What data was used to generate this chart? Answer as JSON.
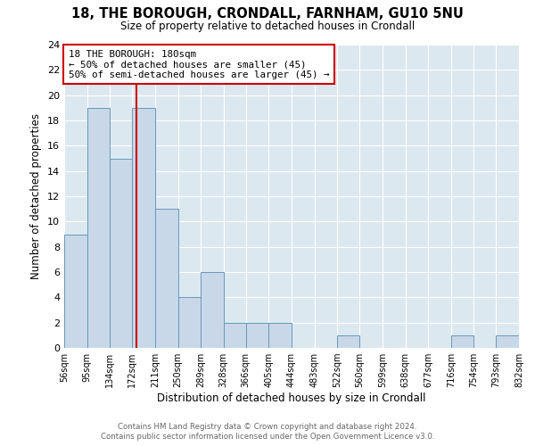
{
  "title": "18, THE BOROUGH, CRONDALL, FARNHAM, GU10 5NU",
  "subtitle": "Size of property relative to detached houses in Crondall",
  "xlabel": "Distribution of detached houses by size in Crondall",
  "ylabel": "Number of detached properties",
  "footer_line1": "Contains HM Land Registry data © Crown copyright and database right 2024.",
  "footer_line2": "Contains public sector information licensed under the Open Government Licence v3.0.",
  "bin_edges": [
    56,
    95,
    134,
    172,
    211,
    250,
    289,
    328,
    366,
    405,
    444,
    483,
    522,
    560,
    599,
    638,
    677,
    716,
    754,
    793,
    832
  ],
  "counts": [
    9,
    19,
    15,
    19,
    11,
    4,
    6,
    2,
    2,
    2,
    0,
    0,
    1,
    0,
    0,
    0,
    0,
    1,
    0,
    1
  ],
  "bar_color": "#c8d8e8",
  "bar_edge_color": "#6699bb",
  "property_line_x": 180,
  "property_line_color": "#cc0000",
  "annotation_text_line1": "18 THE BOROUGH: 180sqm",
  "annotation_text_line2": "← 50% of detached houses are smaller (45)",
  "annotation_text_line3": "50% of semi-detached houses are larger (45) →",
  "annotation_box_color": "#ffffff",
  "annotation_box_edge": "#cc0000",
  "ylim": [
    0,
    24
  ],
  "yticks": [
    0,
    2,
    4,
    6,
    8,
    10,
    12,
    14,
    16,
    18,
    20,
    22,
    24
  ],
  "bg_color": "#dce8f0"
}
